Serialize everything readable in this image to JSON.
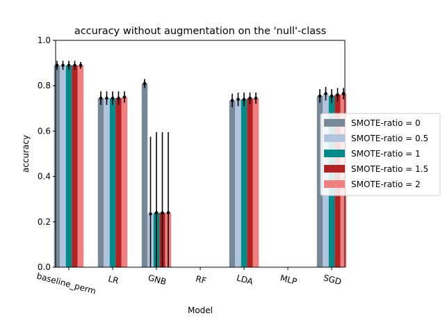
{
  "chart_data": {
    "type": "bar",
    "title": "accuracy without augmentation on the 'null'-class",
    "xlabel": "Model",
    "ylabel": "accuracy",
    "ylim": [
      0,
      1.0
    ],
    "yticks": [
      0.0,
      0.2,
      0.4,
      0.6,
      0.8,
      1.0
    ],
    "ytick_labels": [
      "0.0",
      "0.2",
      "0.4",
      "0.6",
      "0.8",
      "1.0"
    ],
    "grid": false,
    "legend_position": "right",
    "categories": [
      "baseline_perm",
      "LR",
      "GNB",
      "RF",
      "LDA",
      "MLP",
      "SGD"
    ],
    "series": [
      {
        "name": "SMOTE-ratio = 0",
        "color": "#778899",
        "values": [
          0.89,
          0.745,
          0.81,
          null,
          0.735,
          null,
          0.755
        ],
        "err": [
          0.02,
          0.03,
          0.02,
          null,
          0.03,
          null,
          0.03
        ]
      },
      {
        "name": "SMOTE-ratio = 0.5",
        "color": "#b0c4de",
        "values": [
          0.89,
          0.745,
          0.235,
          null,
          0.74,
          null,
          0.765
        ],
        "err": [
          0.02,
          0.03,
          0.34,
          null,
          0.03,
          null,
          0.03
        ]
      },
      {
        "name": "SMOTE-ratio = 1",
        "color": "#008b8b",
        "values": [
          0.89,
          0.745,
          0.24,
          null,
          0.74,
          null,
          0.755
        ],
        "err": [
          0.02,
          0.03,
          0.355,
          null,
          0.03,
          null,
          0.03
        ]
      },
      {
        "name": "SMOTE-ratio = 1.5",
        "color": "#b22222",
        "values": [
          0.89,
          0.745,
          0.24,
          null,
          0.745,
          null,
          0.76
        ],
        "err": [
          0.02,
          0.03,
          0.355,
          null,
          0.025,
          null,
          0.03
        ]
      },
      {
        "name": "SMOTE-ratio = 2",
        "color": "#f08080",
        "values": [
          0.89,
          0.75,
          0.24,
          null,
          0.745,
          null,
          0.765
        ],
        "err": [
          0.015,
          0.025,
          0.355,
          null,
          0.025,
          null,
          0.025
        ]
      }
    ]
  }
}
